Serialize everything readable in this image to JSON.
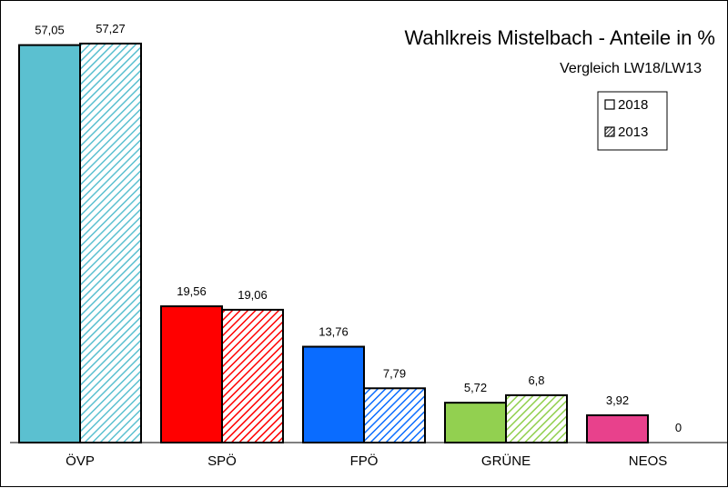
{
  "chart_data": {
    "type": "bar",
    "title": "Wahlkreis Mistelbach - Anteile in %",
    "subtitle": "Vergleich LW18/LW13",
    "categories": [
      "ÖVP",
      "SPÖ",
      "FPÖ",
      "GRÜNE",
      "NEOS"
    ],
    "series": [
      {
        "name": "2018",
        "values": [
          57.05,
          19.56,
          13.76,
          5.72,
          3.92
        ],
        "labels": [
          "57,05",
          "19,56",
          "13,76",
          "5,72",
          "3,92"
        ],
        "pattern": "solid"
      },
      {
        "name": "2013",
        "values": [
          57.27,
          19.06,
          7.79,
          6.8,
          0
        ],
        "labels": [
          "57,27",
          "19,06",
          "7,79",
          "6,8",
          "0"
        ],
        "pattern": "hatched"
      }
    ],
    "colors": [
      "#5bc0d0",
      "#ff0000",
      "#0a6cff",
      "#92d050",
      "#e8418c"
    ],
    "ylim": [
      0,
      60
    ],
    "legend_position": "top-right",
    "grid": false
  }
}
